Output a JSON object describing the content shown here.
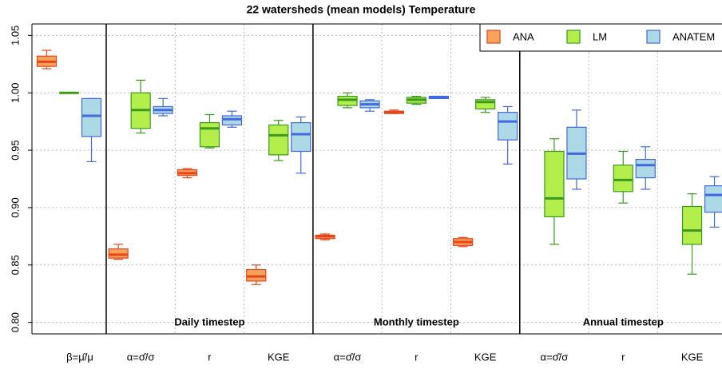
{
  "chart_data": {
    "type": "box",
    "title": "22 watersheds (mean models) Temperature",
    "categories": [
      "β=μ̂/μ",
      "α=σ̂/σ",
      "r",
      "KGE",
      "α=σ̂/σ",
      "r",
      "KGE",
      "α=σ̂/σ",
      "r",
      "KGE"
    ],
    "annotations": [
      "Daily timestep",
      "Monthly timestep",
      "Annual timestep"
    ],
    "ylim": [
      0.79,
      1.06
    ],
    "yticks": [
      {
        "value": 0.8,
        "label": "0.80"
      },
      0.85,
      {
        "value": 0.9,
        "label": "0.90"
      },
      0.95,
      {
        "value": 1.0,
        "label": "1.00"
      },
      1.05
    ],
    "grid": true,
    "legend": "top-right",
    "series": [
      {
        "name": "ANA",
        "color": "#f7a35c",
        "edge": "#e8441a",
        "values": [
          [
            1.021,
            1.023,
            1.027,
            1.032,
            1.037
          ],
          [
            0.855,
            0.856,
            0.859,
            0.864,
            0.868
          ],
          [
            0.926,
            0.928,
            0.93,
            0.933,
            0.934
          ],
          [
            0.833,
            0.836,
            0.84,
            0.846,
            0.85
          ],
          [
            0.872,
            0.873,
            0.875,
            0.876,
            0.877
          ],
          [
            0.982,
            0.982,
            0.983,
            0.984,
            0.985
          ],
          [
            0.866,
            0.867,
            0.87,
            0.873,
            0.874
          ],
          null,
          null,
          null
        ]
      },
      {
        "name": "LM",
        "color": "#b4ee4a",
        "edge": "#3a9a1e",
        "values": [
          [
            1.0,
            1.0,
            1.0,
            1.0,
            1.0
          ],
          [
            0.965,
            0.969,
            0.985,
            1.0,
            1.011
          ],
          [
            0.952,
            0.953,
            0.969,
            0.974,
            0.981
          ],
          [
            0.941,
            0.946,
            0.963,
            0.972,
            0.976
          ],
          [
            0.987,
            0.989,
            0.994,
            0.997,
            1.0
          ],
          [
            0.99,
            0.991,
            0.994,
            0.996,
            0.997
          ],
          [
            0.983,
            0.986,
            0.992,
            0.994,
            0.996
          ],
          [
            0.868,
            0.892,
            0.908,
            0.949,
            0.96
          ],
          [
            0.904,
            0.914,
            0.924,
            0.937,
            0.949
          ],
          [
            0.842,
            0.868,
            0.88,
            0.901,
            0.912
          ]
        ]
      },
      {
        "name": "ANATEM",
        "color": "#add8e6",
        "edge": "#4169e1",
        "values": [
          [
            0.94,
            0.962,
            0.98,
            0.995,
            0.995
          ],
          [
            0.98,
            0.982,
            0.985,
            0.988,
            0.995
          ],
          [
            0.97,
            0.972,
            0.977,
            0.98,
            0.984
          ],
          [
            0.93,
            0.949,
            0.964,
            0.974,
            0.979
          ],
          [
            0.984,
            0.987,
            0.99,
            0.993,
            0.994
          ],
          [
            0.995,
            0.995,
            0.996,
            0.997,
            0.997
          ],
          [
            0.938,
            0.959,
            0.975,
            0.983,
            0.988
          ],
          [
            0.916,
            0.925,
            0.947,
            0.97,
            0.985
          ],
          [
            0.916,
            0.926,
            0.937,
            0.942,
            0.953
          ],
          [
            0.883,
            0.896,
            0.911,
            0.919,
            0.927
          ]
        ]
      }
    ]
  }
}
